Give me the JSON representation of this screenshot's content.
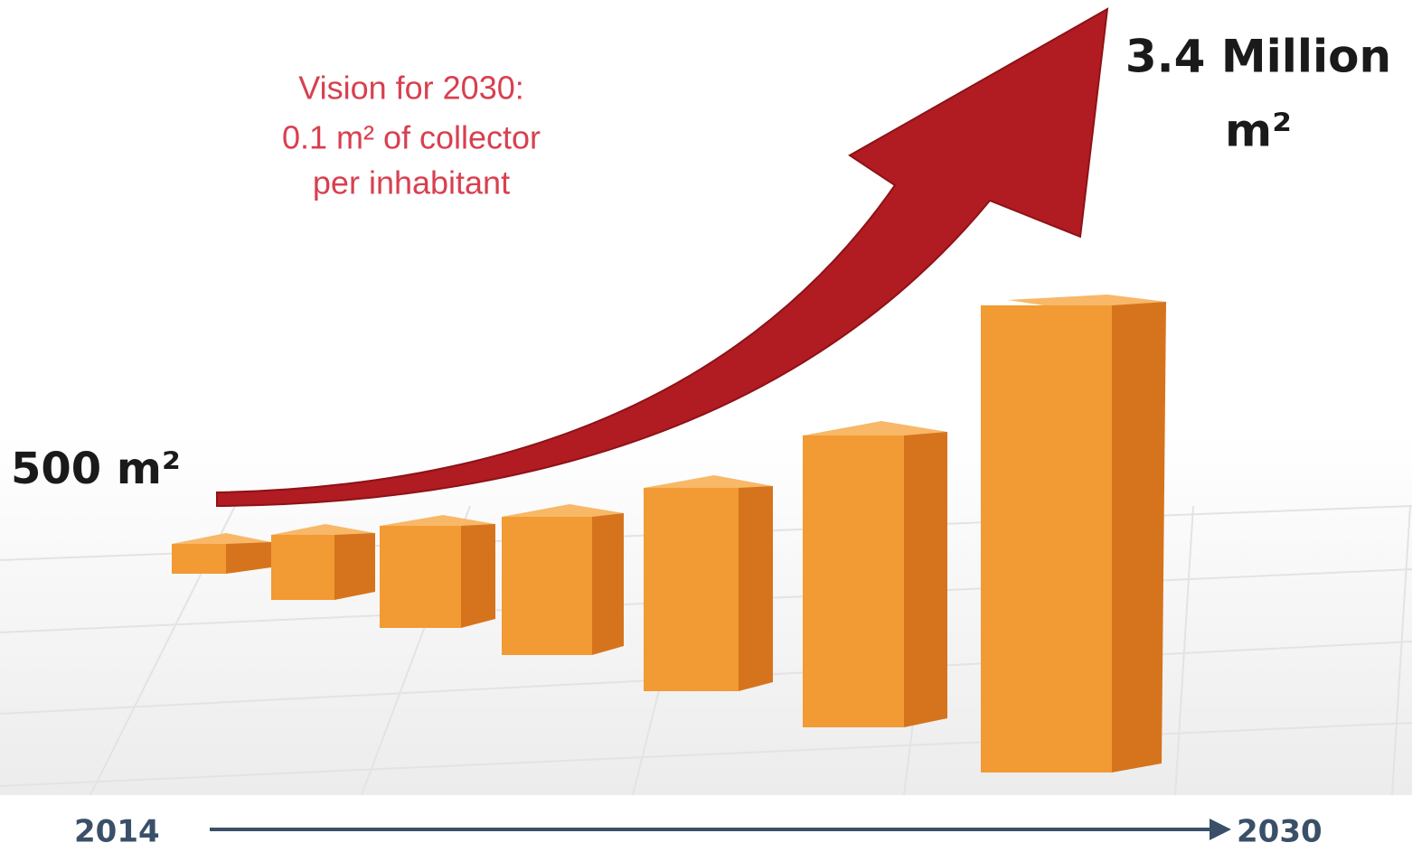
{
  "vision": {
    "lines": [
      "Vision for 2030:",
      "0.1 m² of collector",
      "per inhabitant"
    ]
  },
  "start_label": "500 m²",
  "end_label": {
    "lines": [
      "3.4 Million",
      "m²"
    ]
  },
  "timeline": {
    "start": "2014",
    "end": "2030"
  }
}
